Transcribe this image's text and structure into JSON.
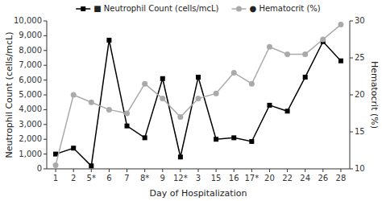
{
  "chart_data": {
    "type": "line",
    "xlabel": "Day of Hospitalization",
    "ylabel": "Neutrophil Count (cells/mcL)",
    "y2label": "Hematocrit (%)",
    "categories": [
      "1",
      "2",
      "5*",
      "6",
      "7",
      "8*",
      "9",
      "12*",
      "3",
      "15",
      "16",
      "17*",
      "20",
      "22",
      "24",
      "26",
      "28"
    ],
    "series": [
      {
        "name": "■ Neutrophil Count (cells/mcL)",
        "color": "#000000",
        "marker": "square",
        "values": [
          1000,
          1400,
          200,
          8700,
          2900,
          2100,
          6100,
          800,
          6200,
          2000,
          2100,
          1850,
          4300,
          3900,
          6200,
          8600,
          7300
        ]
      },
      {
        "name": "● Hematocrit (%)",
        "color": "#aaaaaa",
        "marker": "circle",
        "axis": "y2",
        "values": [
          10.5,
          20.0,
          19.0,
          18.0,
          17.5,
          21.5,
          19.5,
          17.0,
          19.5,
          20.2,
          23.0,
          21.5,
          26.5,
          25.5,
          25.5,
          27.5,
          29.5
        ]
      }
    ],
    "ylim": [
      0,
      10000
    ],
    "yticks": [
      0,
      {
        "value": 1000,
        "label": "1,000"
      },
      {
        "value": 2000,
        "label": "2,000"
      },
      {
        "value": 3000,
        "label": "3,000"
      },
      {
        "value": 4000,
        "label": "4,000"
      },
      {
        "value": 5000,
        "label": "5,000"
      },
      {
        "value": 6000,
        "label": "6,000"
      },
      {
        "value": 7000,
        "label": "7,000"
      },
      {
        "value": 8000,
        "label": "8,000"
      },
      {
        "value": 9000,
        "label": "9,000"
      },
      {
        "value": 10000,
        "label": "10,000"
      }
    ],
    "y2lim": [
      10,
      30
    ],
    "y2ticks": [
      10,
      15,
      20,
      25,
      30
    ],
    "grid": false,
    "legend": "top"
  }
}
